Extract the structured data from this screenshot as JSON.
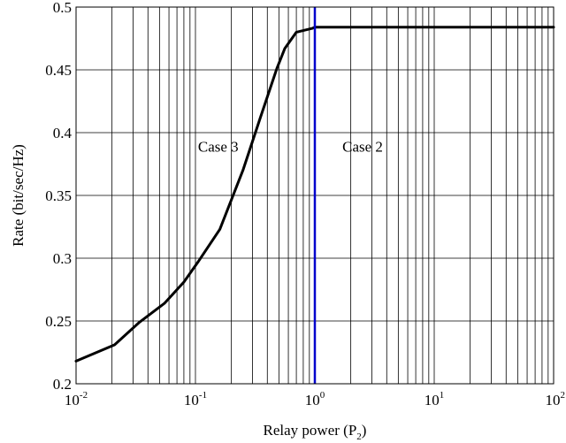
{
  "chart_data": {
    "type": "line",
    "xscale": "log",
    "xlim": [
      0.01,
      100
    ],
    "ylim": [
      0.2,
      0.5
    ],
    "grid": true,
    "xlabel": {
      "main": "Relay power (P",
      "sub": "2",
      "close": ")"
    },
    "ylabel": "Rate (bit/sec/Hz)",
    "x_ticks": [
      {
        "value": 0.01,
        "base": "10",
        "exp": "-2"
      },
      {
        "value": 0.1,
        "base": "10",
        "exp": "-1"
      },
      {
        "value": 1,
        "base": "10",
        "exp": "0"
      },
      {
        "value": 10,
        "base": "10",
        "exp": "1"
      },
      {
        "value": 100,
        "base": "10",
        "exp": "2"
      }
    ],
    "y_ticks": [
      {
        "value": 0.2,
        "label": "0.2"
      },
      {
        "value": 0.25,
        "label": "0.25"
      },
      {
        "value": 0.3,
        "label": "0.3"
      },
      {
        "value": 0.35,
        "label": "0.35"
      },
      {
        "value": 0.4,
        "label": "0.4"
      },
      {
        "value": 0.45,
        "label": "0.45"
      },
      {
        "value": 0.5,
        "label": "0.5"
      }
    ],
    "series": [
      {
        "color": "#000000",
        "x": [
          0.01,
          0.021,
          0.034,
          0.055,
          0.08,
          0.105,
          0.16,
          0.25,
          0.35,
          0.48,
          0.56,
          0.7,
          0.95,
          1,
          2,
          5,
          10,
          20,
          50,
          100
        ],
        "y": [
          0.218,
          0.231,
          0.249,
          0.264,
          0.281,
          0.297,
          0.323,
          0.37,
          0.412,
          0.451,
          0.467,
          0.48,
          0.483,
          0.484,
          0.484,
          0.484,
          0.484,
          0.484,
          0.484,
          0.484
        ]
      }
    ],
    "vlines": [
      {
        "x": 1,
        "color": "#0000cc"
      }
    ],
    "annotations": [
      {
        "text": "Case 3",
        "x": 0.105,
        "y": 0.385
      },
      {
        "text": "Case 2",
        "x": 1.7,
        "y": 0.385
      }
    ]
  }
}
